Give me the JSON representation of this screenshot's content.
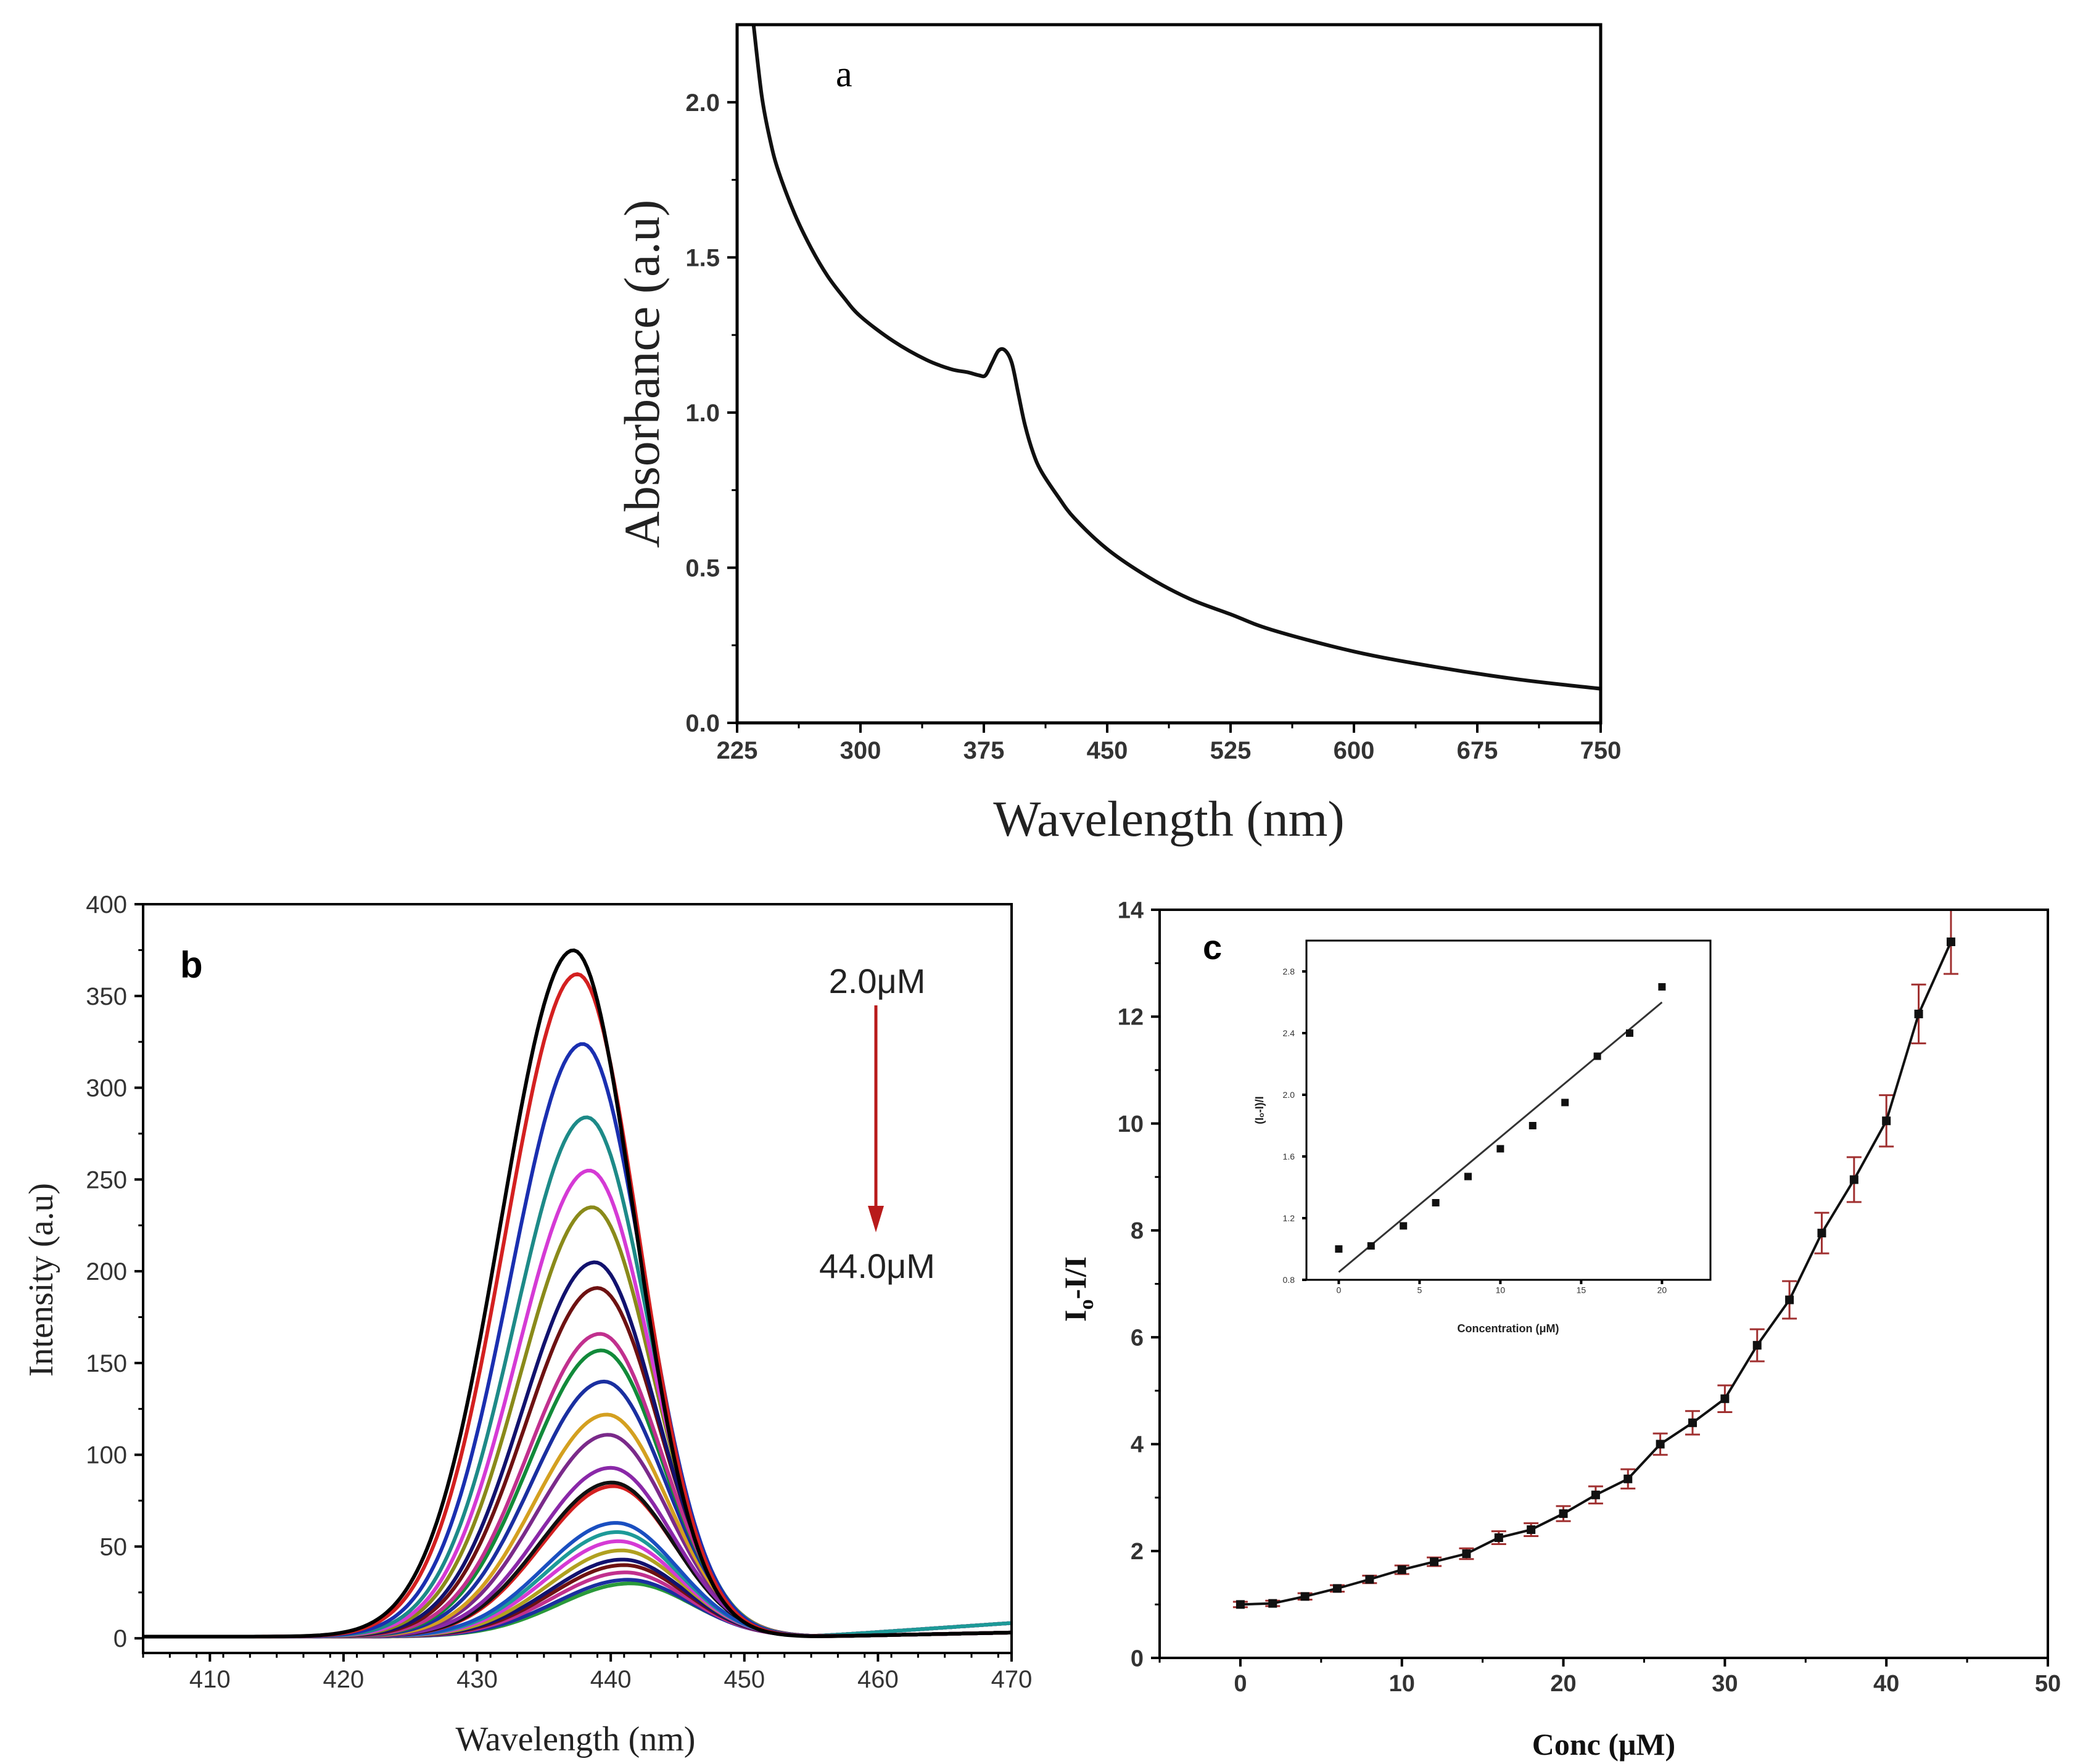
{
  "chart_data": [
    {
      "id": "a",
      "type": "line",
      "panel_label": "a",
      "xlabel": "Wavelength (nm)",
      "ylabel": "Absorbance (a.u)",
      "xlim": [
        225,
        750
      ],
      "ylim": [
        0,
        2.25
      ],
      "xticks": [
        225,
        300,
        375,
        450,
        525,
        600,
        675,
        750
      ],
      "xtick_labels": [
        "225",
        "300",
        "375",
        "450",
        "525",
        "600",
        "675",
        "750"
      ],
      "yticks": [
        0,
        0.5,
        1.0,
        1.5,
        2.0
      ],
      "ytick_labels": [
        "0.0",
        "0.5",
        "1.0",
        "1.5",
        "2.0"
      ],
      "series": [
        {
          "name": "absorbance",
          "x": [
            235,
            240,
            245,
            250,
            260,
            270,
            280,
            290,
            300,
            320,
            340,
            355,
            365,
            372,
            376,
            380,
            384,
            388,
            392,
            396,
            400,
            405,
            410,
            420,
            430,
            450,
            475,
            500,
            525,
            550,
            600,
            650,
            700,
            750
          ],
          "y": [
            2.25,
            2.02,
            1.88,
            1.78,
            1.64,
            1.53,
            1.44,
            1.37,
            1.31,
            1.23,
            1.17,
            1.14,
            1.13,
            1.12,
            1.12,
            1.16,
            1.2,
            1.2,
            1.16,
            1.06,
            0.96,
            0.87,
            0.81,
            0.73,
            0.66,
            0.56,
            0.47,
            0.4,
            0.35,
            0.3,
            0.23,
            0.18,
            0.14,
            0.11
          ]
        }
      ]
    },
    {
      "id": "b",
      "type": "line",
      "panel_label": "b",
      "xlabel": "Wavelength (nm)",
      "ylabel": "Intensity (a.u)",
      "xlim": [
        405,
        470
      ],
      "ylim": [
        -8,
        400
      ],
      "xticks": [
        410,
        420,
        430,
        440,
        450,
        460,
        470
      ],
      "xtick_labels": [
        "410",
        "420",
        "430",
        "440",
        "450",
        "460",
        "470"
      ],
      "yticks": [
        0,
        50,
        100,
        150,
        200,
        250,
        300,
        350,
        400
      ],
      "ytick_labels": [
        "0",
        "50",
        "100",
        "150",
        "200",
        "250",
        "300",
        "350",
        "400"
      ],
      "arrow_start_label": "2.0μM",
      "arrow_end_label": "44.0μM",
      "arrow_color": "#b81b1b",
      "series": [
        {
          "peak": 374,
          "center": 437.2,
          "color": "#000000"
        },
        {
          "peak": 361,
          "center": 437.5,
          "color": "#d42020"
        },
        {
          "peak": 323,
          "center": 437.9,
          "color": "#1a2fb0"
        },
        {
          "peak": 283,
          "center": 438.2,
          "color": "#1d8a88"
        },
        {
          "peak": 254,
          "center": 438.4,
          "color": "#d53ad5"
        },
        {
          "peak": 234,
          "center": 438.6,
          "color": "#8a8a1a"
        },
        {
          "peak": 204,
          "center": 438.8,
          "color": "#12126e"
        },
        {
          "peak": 190,
          "center": 439.0,
          "color": "#6e1212"
        },
        {
          "peak": 165,
          "center": 439.2,
          "color": "#c1308e"
        },
        {
          "peak": 156,
          "center": 439.3,
          "color": "#128a3a"
        },
        {
          "peak": 139,
          "center": 439.5,
          "color": "#1a2fa0"
        },
        {
          "peak": 121,
          "center": 439.7,
          "color": "#d4a020"
        },
        {
          "peak": 110,
          "center": 439.8,
          "color": "#7a2a8a"
        },
        {
          "peak": 92,
          "center": 440.0,
          "color": "#8a28a8"
        },
        {
          "peak": 84,
          "center": 440.1,
          "color": "#111111"
        },
        {
          "peak": 82,
          "center": 440.2,
          "color": "#d42020"
        },
        {
          "peak": 62,
          "center": 440.4,
          "color": "#1a4fc0"
        },
        {
          "peak": 57,
          "center": 440.5,
          "color": "#1d9a98"
        },
        {
          "peak": 52,
          "center": 440.6,
          "color": "#d53ad5"
        },
        {
          "peak": 47,
          "center": 440.8,
          "color": "#b0a020"
        },
        {
          "peak": 42,
          "center": 440.9,
          "color": "#12126e"
        },
        {
          "peak": 39,
          "center": 441.0,
          "color": "#6e1212"
        },
        {
          "peak": 35,
          "center": 441.1,
          "color": "#c1308e"
        },
        {
          "peak": 31,
          "center": 441.3,
          "color": "#1a2fa0"
        },
        {
          "peak": 29,
          "center": 441.5,
          "color": "#2a9a3a"
        }
      ]
    },
    {
      "id": "c",
      "type": "line",
      "panel_label": "c",
      "xlabel": "Conc (μM)",
      "ylabel": "Iₒ-I/I",
      "ylabel_main": "I",
      "ylabel_sub": "o",
      "ylabel_rest": "-I/I",
      "xlim": [
        -5,
        50
      ],
      "ylim": [
        0,
        14
      ],
      "xticks": [
        0,
        10,
        20,
        30,
        40,
        50
      ],
      "xtick_labels": [
        "0",
        "10",
        "20",
        "30",
        "40",
        "50"
      ],
      "yticks": [
        0,
        2,
        4,
        6,
        8,
        10,
        12,
        14
      ],
      "ytick_labels": [
        "0",
        "2",
        "4",
        "6",
        "8",
        "10",
        "12",
        "14"
      ],
      "error_color": "#a03030",
      "x": [
        0,
        2,
        4,
        6,
        8,
        10,
        12,
        14,
        16,
        18,
        20,
        22,
        24,
        26,
        28,
        30,
        32,
        34,
        36,
        38,
        40,
        42,
        44
      ],
      "y": [
        1.0,
        1.02,
        1.15,
        1.3,
        1.47,
        1.65,
        1.8,
        1.95,
        2.25,
        2.4,
        2.7,
        3.05,
        3.35,
        4.0,
        4.4,
        4.85,
        5.85,
        6.7,
        7.95,
        8.95,
        10.05,
        12.05,
        13.4
      ],
      "yerr": [
        0.05,
        0.05,
        0.06,
        0.06,
        0.07,
        0.08,
        0.08,
        0.1,
        0.12,
        0.12,
        0.14,
        0.16,
        0.18,
        0.2,
        0.22,
        0.25,
        0.3,
        0.35,
        0.38,
        0.42,
        0.48,
        0.55,
        0.6
      ],
      "inset": {
        "type": "scatter",
        "xlabel": "Concentration (μM)",
        "ylabel": "(Iₒ-I)/I",
        "xlim": [
          -2,
          23
        ],
        "ylim": [
          0.8,
          3.0
        ],
        "xticks": [
          0,
          5,
          10,
          15,
          20
        ],
        "xtick_labels": [
          "0",
          "5",
          "10",
          "15",
          "20"
        ],
        "yticks": [
          0.8,
          1.2,
          1.6,
          2.0,
          2.4,
          2.8
        ],
        "ytick_labels": [
          "0.8",
          "1.2",
          "1.6",
          "2.0",
          "2.4",
          "2.8"
        ],
        "x": [
          0,
          2,
          4,
          6,
          8,
          10,
          12,
          14,
          16,
          18,
          20
        ],
        "y": [
          1.0,
          1.02,
          1.15,
          1.3,
          1.47,
          1.65,
          1.8,
          1.95,
          2.25,
          2.4,
          2.7
        ],
        "fit": {
          "x": [
            0,
            20
          ],
          "y": [
            0.85,
            2.6
          ]
        }
      }
    }
  ]
}
